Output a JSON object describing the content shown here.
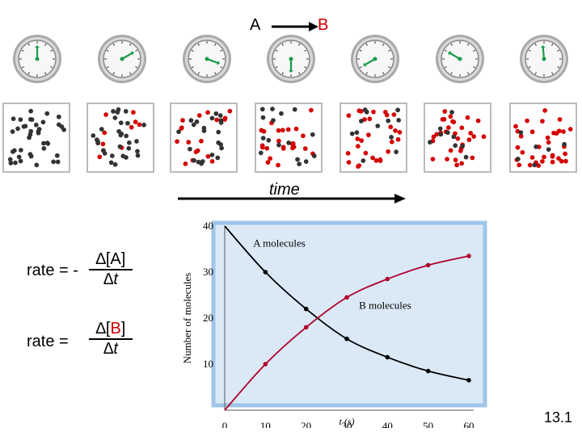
{
  "reaction": {
    "reactant": "A",
    "product": "B"
  },
  "clocks": [
    {
      "name": "clock-1",
      "hand_angle": 0
    },
    {
      "name": "clock-2",
      "hand_angle": 60
    },
    {
      "name": "clock-3",
      "hand_angle": 110
    },
    {
      "name": "clock-4",
      "hand_angle": 180
    },
    {
      "name": "clock-5",
      "hand_angle": 240
    },
    {
      "name": "clock-6",
      "hand_angle": 300
    },
    {
      "name": "clock-7",
      "hand_angle": 355
    }
  ],
  "boxes": [
    {
      "red_fraction": 0.0
    },
    {
      "red_fraction": 0.25
    },
    {
      "red_fraction": 0.45
    },
    {
      "red_fraction": 0.6
    },
    {
      "red_fraction": 0.7
    },
    {
      "red_fraction": 0.78
    },
    {
      "red_fraction": 0.84
    }
  ],
  "time_label": "time",
  "formulas": {
    "rate_a_prefix": "rate = -",
    "rate_a_num": "∆[A]",
    "rate_a_den": "∆t",
    "rate_b_prefix": "rate =",
    "rate_b_num_pre": "∆[",
    "rate_b_num_b": "B",
    "rate_b_num_post": "]",
    "rate_b_den": "∆t"
  },
  "chart_data": {
    "type": "line",
    "xlabel": "t (s)",
    "ylabel": "Number of molecules",
    "xlim": [
      0,
      60
    ],
    "ylim": [
      0,
      40
    ],
    "xticks": [
      0,
      10,
      20,
      30,
      40,
      50,
      60
    ],
    "yticks": [
      10,
      20,
      30,
      40
    ],
    "series": [
      {
        "name": "A molecules",
        "color": "#000000",
        "x": [
          0,
          10,
          20,
          30,
          40,
          50,
          60
        ],
        "y": [
          40,
          30,
          22,
          15.5,
          11.5,
          8.5,
          6.5
        ]
      },
      {
        "name": "B molecules",
        "color": "#b0002a",
        "x": [
          0,
          10,
          20,
          30,
          40,
          50,
          60
        ],
        "y": [
          0,
          10,
          18,
          24.5,
          28.5,
          31.5,
          33.5
        ]
      }
    ],
    "colors": {
      "plot_bg": "#dbe9f7",
      "frame": "#9fc5e8"
    }
  },
  "slide_number": "13.1"
}
